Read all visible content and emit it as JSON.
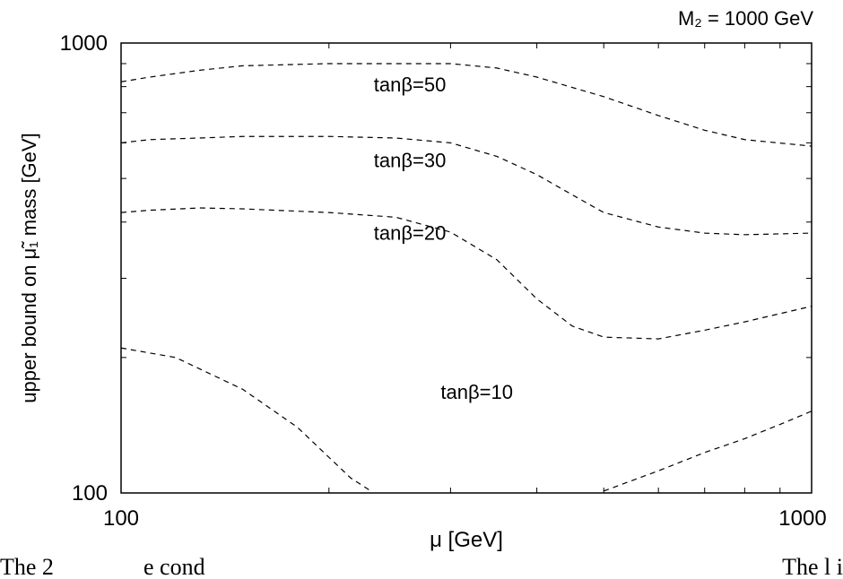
{
  "chart_data": {
    "type": "line",
    "title": "M₂ = 1000 GeV",
    "xlabel": "μ [GeV]",
    "ylabel": "upper bound on μ̃₁ mass [GeV]",
    "xscale": "log",
    "yscale": "log",
    "xlim": [
      100,
      1000
    ],
    "ylim": [
      100,
      1000
    ],
    "xtick_labels": [
      "100",
      "1000"
    ],
    "ytick_labels": [
      "100",
      "1000"
    ],
    "grid": false,
    "line_style": "dashed",
    "series": [
      {
        "name": "tanβ=50",
        "x": [
          100,
          110,
          130,
          150,
          200,
          300,
          350,
          400,
          500,
          600,
          700,
          800,
          1000
        ],
        "y": [
          820,
          840,
          870,
          890,
          900,
          900,
          880,
          840,
          760,
          690,
          640,
          610,
          590
        ]
      },
      {
        "name": "tanβ=30",
        "x": [
          100,
          110,
          130,
          150,
          200,
          250,
          300,
          350,
          400,
          450,
          500,
          600,
          700,
          800,
          1000
        ],
        "y": [
          600,
          610,
          615,
          620,
          620,
          615,
          600,
          560,
          510,
          460,
          420,
          390,
          378,
          375,
          378
        ]
      },
      {
        "name": "tanβ=20",
        "x": [
          100,
          110,
          130,
          150,
          200,
          250,
          300,
          350,
          400,
          450,
          500,
          600,
          700,
          800,
          1000
        ],
        "y": [
          420,
          425,
          430,
          428,
          420,
          410,
          380,
          330,
          270,
          235,
          222,
          220,
          230,
          240,
          260
        ]
      },
      {
        "name": "tanβ=10",
        "x": [
          100,
          120,
          150,
          180,
          200,
          215,
          230
        ],
        "y": [
          210,
          200,
          170,
          140,
          120,
          108,
          101
        ]
      },
      {
        "name": "tanβ=10",
        "x": [
          500,
          600,
          700,
          800,
          900,
          1000
        ],
        "y": [
          101,
          112,
          123,
          132,
          142,
          152
        ]
      }
    ],
    "annotations": [
      {
        "text": "tanβ=50",
        "x": 200,
        "y": 780
      },
      {
        "text": "tanβ=30",
        "x": 200,
        "y": 530
      },
      {
        "text": "tanβ=20",
        "x": 200,
        "y": 365
      },
      {
        "text": "tanβ=10",
        "x": 250,
        "y": 162
      }
    ]
  },
  "caption_fragment": {
    "left": "The 2",
    "middle": "e cond",
    "right": "The l i"
  }
}
